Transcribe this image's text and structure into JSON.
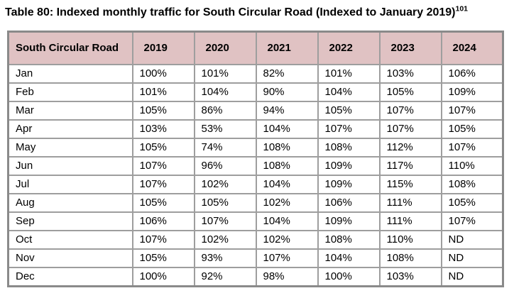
{
  "page": {
    "title": "Table 80: Indexed monthly traffic for South Circular Road (Indexed to January 2019)",
    "title_footnote": "101"
  },
  "colors": {
    "header_bg": "#e0c2c3",
    "border": "#9e9e9e",
    "outer_border": "#8a8a8a",
    "text": "#000000",
    "page_bg": "#ffffff"
  },
  "table": {
    "columns": [
      "South Circular Road",
      "2019",
      "2020",
      "2021",
      "2022",
      "2023",
      "2024"
    ],
    "no_data_label": "ND",
    "rows": [
      {
        "month": "Jan",
        "values": [
          "100%",
          "101%",
          "82%",
          "101%",
          "103%",
          "106%"
        ]
      },
      {
        "month": "Feb",
        "values": [
          "101%",
          "104%",
          "90%",
          "104%",
          "105%",
          "109%"
        ]
      },
      {
        "month": "Mar",
        "values": [
          "105%",
          "86%",
          "94%",
          "105%",
          "107%",
          "107%"
        ]
      },
      {
        "month": "Apr",
        "values": [
          "103%",
          "53%",
          "104%",
          "107%",
          "107%",
          "105%"
        ]
      },
      {
        "month": "May",
        "values": [
          "105%",
          "74%",
          "108%",
          "108%",
          "112%",
          "107%"
        ]
      },
      {
        "month": "Jun",
        "values": [
          "107%",
          "96%",
          "108%",
          "109%",
          "117%",
          "110%"
        ]
      },
      {
        "month": "Jul",
        "values": [
          "107%",
          "102%",
          "104%",
          "109%",
          "115%",
          "108%"
        ]
      },
      {
        "month": "Aug",
        "values": [
          "105%",
          "105%",
          "102%",
          "106%",
          "111%",
          "105%"
        ]
      },
      {
        "month": "Sep",
        "values": [
          "106%",
          "107%",
          "104%",
          "109%",
          "111%",
          "107%"
        ]
      },
      {
        "month": "Oct",
        "values": [
          "107%",
          "102%",
          "102%",
          "108%",
          "110%",
          "ND"
        ]
      },
      {
        "month": "Nov",
        "values": [
          "105%",
          "93%",
          "107%",
          "104%",
          "108%",
          "ND"
        ]
      },
      {
        "month": "Dec",
        "values": [
          "100%",
          "92%",
          "98%",
          "100%",
          "103%",
          "ND"
        ]
      }
    ]
  }
}
